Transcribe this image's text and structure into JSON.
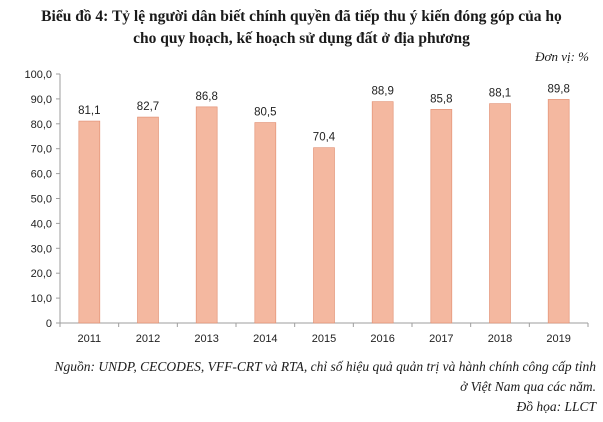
{
  "title_line1": "Biểu đồ 4: Tỷ lệ người dân biết chính quyền đã tiếp thu ý kiến đóng góp của họ",
  "title_line2": "cho quy hoạch, kế hoạch sử dụng đất ở địa phương",
  "unit": "Đơn vị: %",
  "source_line1": "Nguồn: UNDP, CECODES, VFF-CRT và RTA, chỉ số hiệu quả quản trị và hành chính công cấp tỉnh",
  "source_line2": "ở Việt Nam qua các năm.",
  "credit": "Đồ họa: LLCT",
  "colors": {
    "bar": "#f4b8a0",
    "bar_edge": "#e08a6c",
    "axis": "#9e9e9e"
  },
  "chart_data": {
    "type": "bar",
    "categories": [
      "2011",
      "2012",
      "2013",
      "2014",
      "2015",
      "2016",
      "2017",
      "2018",
      "2019"
    ],
    "values": [
      81.1,
      82.7,
      86.8,
      80.5,
      70.4,
      88.9,
      85.8,
      88.1,
      89.8
    ],
    "data_labels": [
      "81,1",
      "82,7",
      "86,8",
      "80,5",
      "70,4",
      "88,9",
      "85,8",
      "88,1",
      "89,8"
    ],
    "y_ticks": [
      0,
      10,
      20,
      30,
      40,
      50,
      60,
      70,
      80,
      90,
      100
    ],
    "y_tick_labels": [
      "0",
      "10,0",
      "20,0",
      "30,0",
      "40,0",
      "50,0",
      "60,0",
      "70,0",
      "80,0",
      "90,0",
      "100,0"
    ],
    "ylim": [
      0,
      100
    ],
    "grid": false,
    "legend": "none"
  }
}
